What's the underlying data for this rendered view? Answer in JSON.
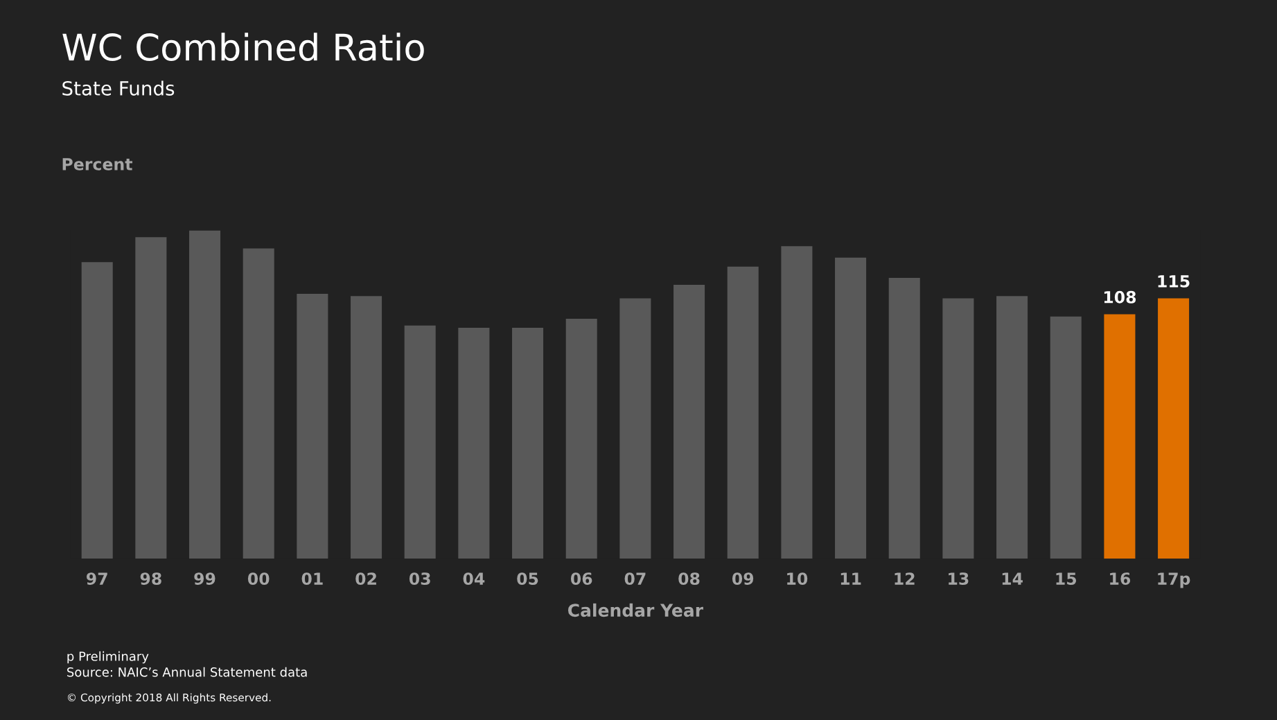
{
  "chart_data": {
    "type": "bar",
    "title": "WC Combined Ratio",
    "subtitle": "State Funds",
    "ylabel": "Percent",
    "xlabel": "Calendar Year",
    "categories": [
      "97",
      "98",
      "99",
      "00",
      "01",
      "02",
      "03",
      "04",
      "05",
      "06",
      "07",
      "08",
      "09",
      "10",
      "11",
      "12",
      "13",
      "14",
      "15",
      "16",
      "17p"
    ],
    "values": [
      131,
      142,
      145,
      137,
      117,
      116,
      103,
      102,
      102,
      106,
      115,
      121,
      129,
      138,
      133,
      124,
      115,
      116,
      107,
      108,
      115
    ],
    "value_labels": [
      null,
      null,
      null,
      null,
      null,
      null,
      null,
      null,
      null,
      null,
      null,
      null,
      null,
      null,
      null,
      null,
      null,
      null,
      null,
      "108",
      "115"
    ],
    "colors": [
      "#595959",
      "#595959",
      "#595959",
      "#595959",
      "#595959",
      "#595959",
      "#595959",
      "#595959",
      "#595959",
      "#595959",
      "#595959",
      "#595959",
      "#595959",
      "#595959",
      "#595959",
      "#595959",
      "#595959",
      "#595959",
      "#595959",
      "#e07000",
      "#e07000"
    ],
    "annotations": [
      "p Preliminary",
      "Source: NAIC’s Annual Statement data",
      "© Copyright 2018 All Rights Reserved."
    ]
  }
}
